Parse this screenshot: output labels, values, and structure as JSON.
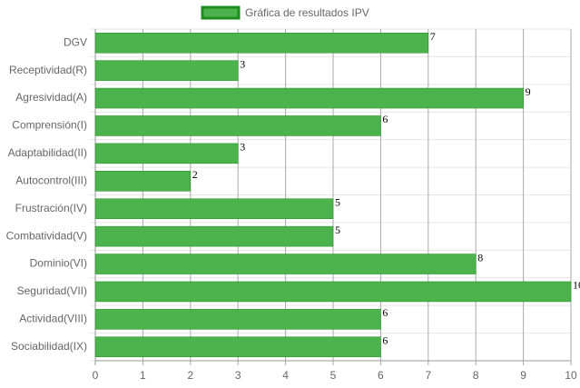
{
  "chart_data": {
    "type": "bar",
    "orientation": "horizontal",
    "categories": [
      "DGV",
      "Receptividad(R)",
      "Agresividad(A)",
      "Comprensión(I)",
      "Adaptabilidad(II)",
      "Autocontrol(III)",
      "Frustración(IV)",
      "Combatividad(V)",
      "Dominio(VI)",
      "Seguridad(VII)",
      "Actividad(VIII)",
      "Sociabilidad(IX)"
    ],
    "series": [
      {
        "name": "Gráfica de resultados IPV",
        "color": "#4cb34c",
        "border_color": "#1e8c1e",
        "values": [
          7,
          3,
          9,
          6,
          3,
          2,
          5,
          5,
          8,
          10,
          6,
          6
        ]
      }
    ],
    "xlim": [
      0,
      10
    ],
    "xticks": [
      0,
      1,
      2,
      3,
      4,
      5,
      6,
      7,
      8,
      9,
      10
    ],
    "grid": true,
    "legend": "top"
  }
}
